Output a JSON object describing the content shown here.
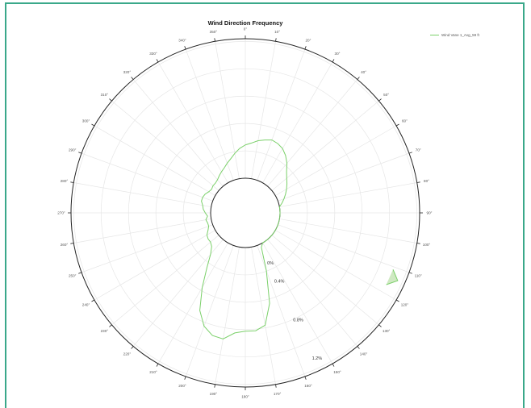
{
  "chart_data": {
    "type": "line",
    "subtype": "polar",
    "title": "Wind Direction Frequency",
    "angle_ticks": [
      "0°",
      "10°",
      "20°",
      "30°",
      "40°",
      "50°",
      "60°",
      "70°",
      "80°",
      "90°",
      "100°",
      "110°",
      "120°",
      "130°",
      "140°",
      "150°",
      "160°",
      "170°",
      "180°",
      "190°",
      "200°",
      "210°",
      "220°",
      "230°",
      "240°",
      "250°",
      "260°",
      "270°",
      "280°",
      "290°",
      "300°",
      "310°",
      "320°",
      "330°",
      "340°",
      "350°"
    ],
    "radial_ticks": [
      {
        "value": 0,
        "label": "0%"
      },
      {
        "value": 0.4,
        "label": "0.4%"
      },
      {
        "value": 0.8,
        "label": "0.8%"
      },
      {
        "value": 1.2,
        "label": "1.2%"
      }
    ],
    "rlim": [
      0,
      1.3
    ],
    "grid": true,
    "legend_position": "top-right",
    "series": [
      {
        "name": "Wind Vane 1_Avg_59 ft",
        "color": "#7bd06a",
        "theta": [
          0,
          5,
          10,
          15,
          20,
          25,
          30,
          35,
          40,
          45,
          50,
          55,
          60,
          65,
          70,
          75,
          80,
          85,
          90,
          95,
          100,
          105,
          110,
          115,
          120,
          125,
          130,
          135,
          140,
          145,
          150,
          155,
          160,
          165,
          170,
          175,
          180,
          185,
          190,
          195,
          200,
          205,
          210,
          215,
          220,
          225,
          230,
          235,
          240,
          245,
          250,
          255,
          260,
          265,
          270,
          275,
          280,
          285,
          290,
          295,
          300,
          305,
          310,
          315,
          320,
          325,
          330,
          335,
          340,
          345,
          350,
          355
        ],
        "r": [
          0.31,
          0.33,
          0.36,
          0.38,
          0.4,
          0.39,
          0.37,
          0.33,
          0.28,
          0.22,
          0.18,
          0.15,
          0.12,
          0.09,
          0.06,
          0.03,
          0.0,
          0.0,
          0.0,
          0.0,
          0.0,
          0.0,
          0.0,
          0.0,
          0.0,
          0.0,
          0.0,
          0.0,
          0.0,
          0.0,
          0.0,
          0.03,
          0.25,
          0.55,
          0.74,
          0.78,
          0.78,
          0.8,
          0.87,
          0.86,
          0.8,
          0.68,
          0.48,
          0.3,
          0.18,
          0.12,
          0.1,
          0.1,
          0.09,
          0.06,
          0.04,
          0.04,
          0.05,
          0.03,
          0.05,
          0.07,
          0.08,
          0.1,
          0.1,
          0.09,
          0.07,
          0.06,
          0.07,
          0.07,
          0.08,
          0.1,
          0.12,
          0.14,
          0.17,
          0.2,
          0.24,
          0.28
        ]
      }
    ],
    "annotation_spike": {
      "theta": [
        111,
        114,
        117
      ],
      "r": [
        1.15,
        1.23,
        1.15
      ]
    }
  }
}
